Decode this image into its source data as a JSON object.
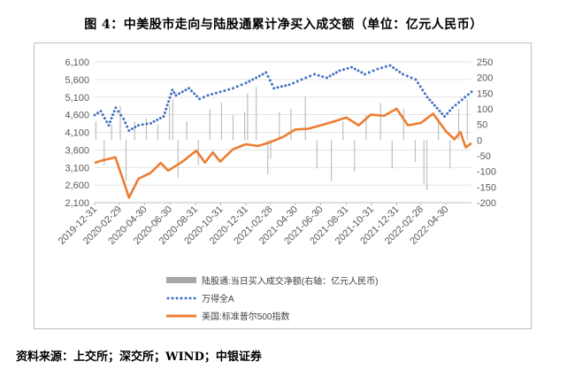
{
  "title": "图 4：中美股市走向与陆股通累计净买入成交额（单位：亿元人民币）",
  "source": "资料来源：上交所；深交所；WIND；中银证券",
  "chart_data": {
    "type": "line",
    "left_axis": {
      "ticks": [
        "6,100",
        "5,600",
        "5,100",
        "4,600",
        "4,100",
        "3,600",
        "3,100",
        "2,600",
        "2,100"
      ],
      "min": 2100,
      "max": 6100
    },
    "right_axis": {
      "ticks": [
        "250",
        "200",
        "150",
        "100",
        "50",
        "0",
        "-50",
        "-100",
        "-150",
        "-200"
      ],
      "min": -200,
      "max": 250
    },
    "x_ticks": [
      "2019-12-31",
      "2020-02-29",
      "2020-04-30",
      "2020-06-30",
      "2020-08-31",
      "2020-10-31",
      "2020-12-31",
      "2021-02-28",
      "2021-04-30",
      "2021-06-30",
      "2021-08-31",
      "2021-10-31",
      "2021-12-31",
      "2022-02-28",
      "2022-04-30"
    ],
    "x_range": [
      "2019-12-31",
      "2022-06-30"
    ],
    "legend_position": "bottom",
    "legend": [
      {
        "name": "陆股通:当日买入成交净额(右轴：亿元人民币)",
        "color": "#a6a6a6",
        "style": "bar"
      },
      {
        "name": "万得全A",
        "color": "#4472c4",
        "style": "dots"
      },
      {
        "name": "美国:标准普尔500指数",
        "color": "#ed7d31",
        "style": "line"
      }
    ],
    "series": [
      {
        "name": "万得全A",
        "axis": "left",
        "x": [
          "2019-12-31",
          "2020-01-15",
          "2020-02-03",
          "2020-02-20",
          "2020-03-10",
          "2020-03-23",
          "2020-04-15",
          "2020-05-15",
          "2020-06-15",
          "2020-07-06",
          "2020-07-15",
          "2020-08-15",
          "2020-09-10",
          "2020-09-30",
          "2020-10-30",
          "2020-11-30",
          "2020-12-31",
          "2021-01-25",
          "2021-02-18",
          "2021-03-09",
          "2021-04-15",
          "2021-05-15",
          "2021-06-15",
          "2021-07-15",
          "2021-08-15",
          "2021-09-13",
          "2021-10-15",
          "2021-11-15",
          "2021-12-15",
          "2022-01-15",
          "2022-02-15",
          "2022-03-15",
          "2022-04-26",
          "2022-05-15",
          "2022-06-30"
        ],
        "values": [
          4590,
          4700,
          4300,
          4800,
          4480,
          4150,
          4300,
          4360,
          4550,
          5300,
          5150,
          5350,
          5050,
          5150,
          5250,
          5350,
          5500,
          5650,
          5800,
          5350,
          5450,
          5600,
          5750,
          5650,
          5850,
          5950,
          5750,
          5900,
          6000,
          5750,
          5600,
          5100,
          4550,
          4800,
          5250
        ]
      },
      {
        "name": "美国:标准普尔500指数",
        "axis": "left",
        "x": [
          "2019-12-31",
          "2020-01-15",
          "2020-02-19",
          "2020-03-09",
          "2020-03-23",
          "2020-04-15",
          "2020-05-15",
          "2020-06-08",
          "2020-06-26",
          "2020-07-31",
          "2020-09-02",
          "2020-09-23",
          "2020-10-12",
          "2020-10-30",
          "2020-11-30",
          "2020-12-31",
          "2021-01-29",
          "2021-02-26",
          "2021-03-31",
          "2021-04-30",
          "2021-05-31",
          "2021-06-30",
          "2021-07-30",
          "2021-08-31",
          "2021-09-30",
          "2021-10-29",
          "2021-11-30",
          "2021-12-31",
          "2022-01-27",
          "2022-02-28",
          "2022-03-29",
          "2022-04-29",
          "2022-05-20",
          "2022-06-03",
          "2022-06-16",
          "2022-06-30"
        ],
        "values": [
          3230,
          3290,
          3390,
          2750,
          2240,
          2780,
          2950,
          3230,
          3010,
          3270,
          3580,
          3240,
          3530,
          3270,
          3620,
          3760,
          3710,
          3810,
          3970,
          4180,
          4200,
          4300,
          4400,
          4520,
          4300,
          4600,
          4570,
          4770,
          4300,
          4370,
          4630,
          4130,
          3900,
          4110,
          3670,
          3790
        ]
      },
      {
        "name": "陆股通:当日买入成交净额(右轴：亿元人民币)",
        "axis": "right",
        "x": [
          "2020-01-03",
          "2020-01-23",
          "2020-02-10",
          "2020-03-02",
          "2020-03-16",
          "2020-04-06",
          "2020-05-04",
          "2020-06-01",
          "2020-06-29",
          "2020-07-07",
          "2020-07-20",
          "2020-08-10",
          "2020-09-07",
          "2020-10-05",
          "2020-11-02",
          "2020-11-30",
          "2020-12-28",
          "2021-01-04",
          "2021-01-25",
          "2021-02-22",
          "2021-03-01",
          "2021-03-22",
          "2021-04-19",
          "2021-05-24",
          "2021-06-21",
          "2021-07-26",
          "2021-08-23",
          "2021-09-20",
          "2021-10-18",
          "2021-11-22",
          "2021-12-20",
          "2022-01-17",
          "2022-02-14",
          "2022-03-07",
          "2022-03-14",
          "2022-04-11",
          "2022-05-09",
          "2022-05-30",
          "2022-06-20"
        ],
        "values": [
          60,
          -80,
          50,
          110,
          -130,
          60,
          70,
          50,
          110,
          130,
          -120,
          60,
          -80,
          100,
          120,
          80,
          90,
          150,
          170,
          -110,
          -60,
          90,
          100,
          140,
          -90,
          -130,
          60,
          -100,
          80,
          120,
          -90,
          100,
          -70,
          -140,
          -160,
          70,
          -90,
          100,
          130
        ]
      }
    ]
  }
}
